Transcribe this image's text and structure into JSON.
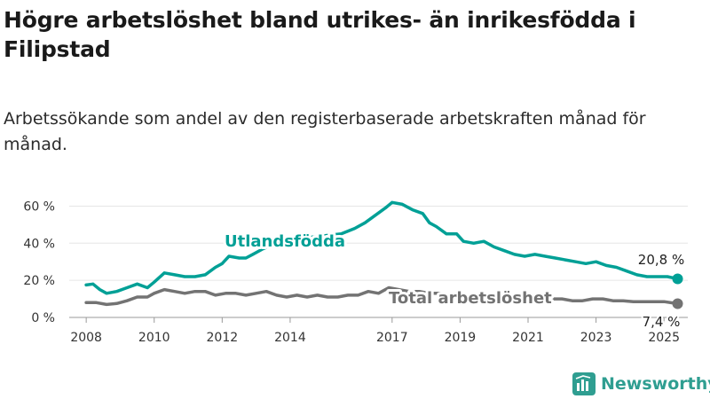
{
  "title": "Högre arbetslöshet bland utrikes- än inrikesfödda i Filipstad",
  "subtitle": "Arbetssökande som andel av den registerbaserade arbetskraften månad för månad.",
  "brand": {
    "name": "Newsworthy",
    "icon": "newsworthy-logo-icon"
  },
  "colors": {
    "foreign": "#00a096",
    "total": "#737373",
    "axis": "#555555",
    "grid": "#e6e6e6"
  },
  "chart_data": {
    "type": "line",
    "xlabel": "",
    "ylabel": "",
    "ylim": [
      0,
      65
    ],
    "xlim": [
      2007.5,
      2025.7
    ],
    "yticks": [
      0,
      20,
      40,
      60
    ],
    "ytick_labels": [
      "0 %",
      "20 %",
      "40 %",
      "60 %"
    ],
    "xticks": [
      2008,
      2010,
      2012,
      2014,
      2017,
      2019,
      2021,
      2023,
      2025
    ],
    "xtick_labels": [
      "2008",
      "2010",
      "2012",
      "2014",
      "2017",
      "2019",
      "2021",
      "2023",
      "2025"
    ],
    "grid": true,
    "series": [
      {
        "name": "Utlandsfödda",
        "end_label": "20,8 %",
        "end_value": 20.8,
        "points": [
          [
            2008.0,
            17.5
          ],
          [
            2008.2,
            18
          ],
          [
            2008.4,
            15
          ],
          [
            2008.6,
            13
          ],
          [
            2008.9,
            14
          ],
          [
            2009.2,
            16
          ],
          [
            2009.5,
            18
          ],
          [
            2009.8,
            16
          ],
          [
            2010.0,
            19
          ],
          [
            2010.3,
            24
          ],
          [
            2010.6,
            23
          ],
          [
            2010.9,
            22
          ],
          [
            2011.2,
            22
          ],
          [
            2011.5,
            23
          ],
          [
            2011.8,
            27
          ],
          [
            2012.0,
            29
          ],
          [
            2012.2,
            33
          ],
          [
            2012.5,
            32
          ],
          [
            2012.7,
            32
          ],
          [
            2012.9,
            34
          ],
          [
            2013.2,
            37
          ],
          [
            2013.6,
            40
          ],
          [
            2014.0,
            42
          ],
          [
            2014.5,
            43
          ],
          [
            2015.0,
            44
          ],
          [
            2015.5,
            45
          ],
          [
            2015.9,
            48
          ],
          [
            2016.2,
            51
          ],
          [
            2016.5,
            55
          ],
          [
            2016.8,
            59
          ],
          [
            2017.0,
            62
          ],
          [
            2017.3,
            61
          ],
          [
            2017.6,
            58
          ],
          [
            2017.9,
            56
          ],
          [
            2018.1,
            51
          ],
          [
            2018.3,
            49
          ],
          [
            2018.6,
            45
          ],
          [
            2018.9,
            45
          ],
          [
            2019.1,
            41
          ],
          [
            2019.4,
            40
          ],
          [
            2019.7,
            41
          ],
          [
            2020.0,
            38
          ],
          [
            2020.3,
            36
          ],
          [
            2020.6,
            34
          ],
          [
            2020.9,
            33
          ],
          [
            2021.2,
            34
          ],
          [
            2021.5,
            33
          ],
          [
            2021.8,
            32
          ],
          [
            2022.1,
            31
          ],
          [
            2022.4,
            30
          ],
          [
            2022.7,
            29
          ],
          [
            2023.0,
            30
          ],
          [
            2023.3,
            28
          ],
          [
            2023.6,
            27
          ],
          [
            2023.9,
            25
          ],
          [
            2024.2,
            23
          ],
          [
            2024.5,
            22
          ],
          [
            2024.8,
            22
          ],
          [
            2025.1,
            22
          ],
          [
            2025.4,
            20.8
          ]
        ]
      },
      {
        "name": "Total arbetslöshet",
        "end_label": "7,4 %",
        "end_value": 7.4,
        "points": [
          [
            2008.0,
            8
          ],
          [
            2008.3,
            8
          ],
          [
            2008.6,
            7
          ],
          [
            2008.9,
            7.5
          ],
          [
            2009.2,
            9
          ],
          [
            2009.5,
            11
          ],
          [
            2009.8,
            11
          ],
          [
            2010.0,
            13
          ],
          [
            2010.3,
            15
          ],
          [
            2010.6,
            14
          ],
          [
            2010.9,
            13
          ],
          [
            2011.2,
            14
          ],
          [
            2011.5,
            14
          ],
          [
            2011.8,
            12
          ],
          [
            2012.1,
            13
          ],
          [
            2012.4,
            13
          ],
          [
            2012.7,
            12
          ],
          [
            2013.0,
            13
          ],
          [
            2013.3,
            14
          ],
          [
            2013.6,
            12
          ],
          [
            2013.9,
            11
          ],
          [
            2014.2,
            12
          ],
          [
            2014.5,
            11
          ],
          [
            2014.8,
            12
          ],
          [
            2015.1,
            11
          ],
          [
            2015.4,
            11
          ],
          [
            2015.7,
            12
          ],
          [
            2016.0,
            12
          ],
          [
            2016.3,
            14
          ],
          [
            2016.6,
            13
          ],
          [
            2016.9,
            16
          ],
          [
            2017.2,
            15
          ],
          [
            2017.5,
            14
          ],
          [
            2017.8,
            14
          ],
          [
            2018.1,
            13
          ],
          [
            2018.4,
            13
          ],
          [
            2018.7,
            12
          ],
          [
            2019.0,
            12
          ],
          [
            2019.3,
            11
          ],
          [
            2019.6,
            11
          ],
          [
            2019.9,
            11
          ],
          [
            2020.2,
            12
          ],
          [
            2020.5,
            11
          ],
          [
            2020.8,
            10
          ],
          [
            2021.1,
            10
          ],
          [
            2021.4,
            10
          ],
          [
            2021.7,
            10
          ],
          [
            2022.0,
            10
          ],
          [
            2022.3,
            9
          ],
          [
            2022.6,
            9
          ],
          [
            2022.9,
            10
          ],
          [
            2023.2,
            10
          ],
          [
            2023.5,
            9
          ],
          [
            2023.8,
            9
          ],
          [
            2024.1,
            8.5
          ],
          [
            2024.4,
            8.5
          ],
          [
            2024.7,
            8.5
          ],
          [
            2025.0,
            8.5
          ],
          [
            2025.4,
            7.4
          ]
        ]
      }
    ]
  }
}
